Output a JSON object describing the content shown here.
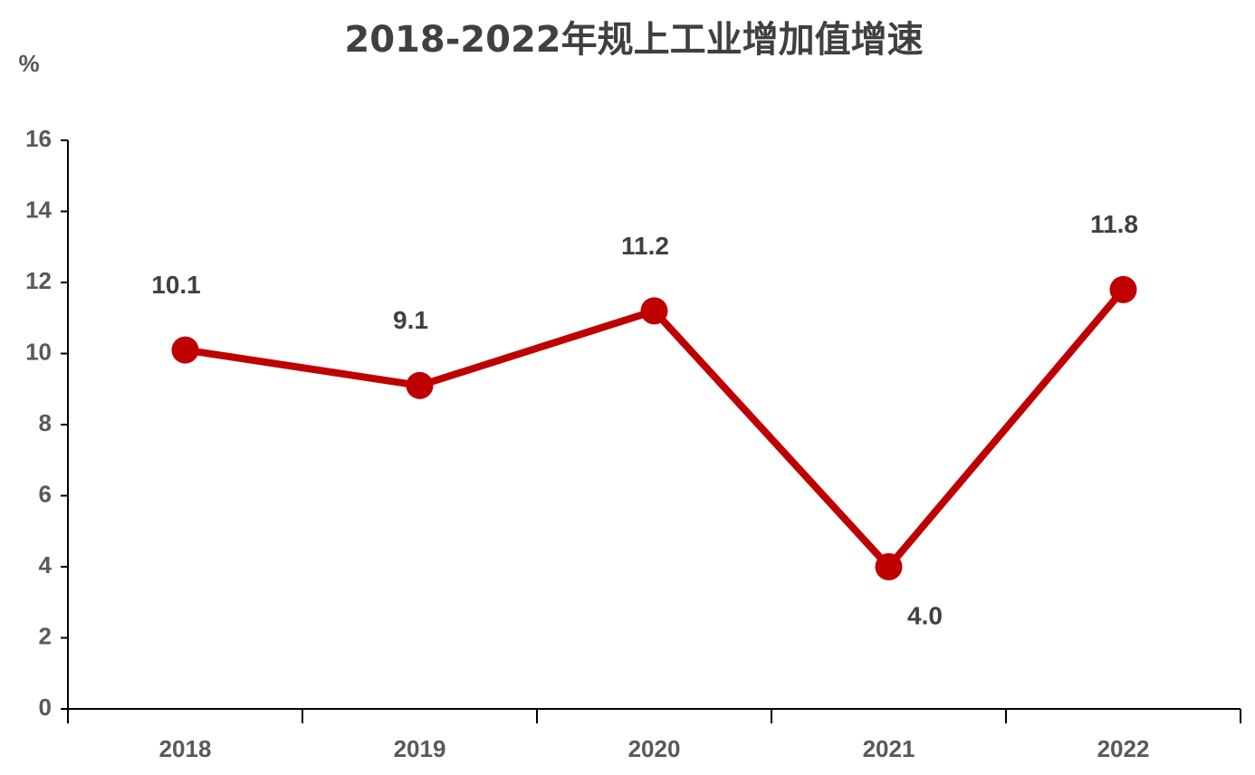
{
  "chart_data": {
    "type": "line",
    "title": "2018-2022年规上工业增加值增速",
    "y_label": "%",
    "categories": [
      "2018",
      "2019",
      "2020",
      "2021",
      "2022"
    ],
    "values": [
      10.1,
      9.1,
      11.2,
      4.0,
      11.8
    ],
    "value_labels": [
      "10.1",
      "9.1",
      "11.2",
      "4.0",
      "11.8"
    ],
    "color": "#c00000",
    "ylim": [
      0,
      16
    ],
    "yticks": [
      0,
      2,
      4,
      6,
      8,
      10,
      12,
      14,
      16
    ],
    "grid": false
  }
}
